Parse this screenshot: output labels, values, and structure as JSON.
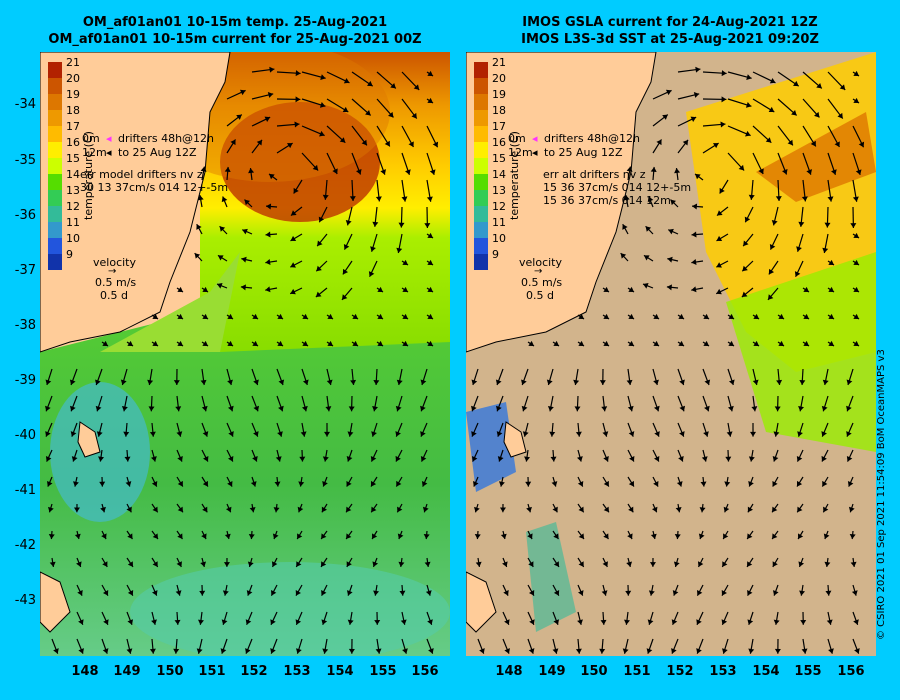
{
  "left_panel": {
    "title_line1": "OM_af01an01 10-15m temp. 25-Aug-2021",
    "title_line2": "OM_af01an01 10-15m current for 25-Aug-2021 00Z",
    "legend": {
      "drifters_line1": "drifters 48h@12h",
      "drifters_line2": "to 25 Aug 12Z",
      "depth_0m": "0m",
      "depth_12m": "12m",
      "err_line1": "err model drifters nv z",
      "err_line2": "30 13 37cm/s 014 12+-5m",
      "velocity_title": "velocity",
      "velocity_speed": "0.5 m/s",
      "velocity_time": "0.5 d"
    }
  },
  "right_panel": {
    "title_line1": "IMOS GSLA current for 24-Aug-2021 12Z",
    "title_line2": "IMOS L3S-3d SST at 25-Aug-2021 09:20Z",
    "legend": {
      "drifters_line1": "drifters 48h@12h",
      "drifters_line2": "to 25 Aug 12Z",
      "depth_0m": "0m",
      "depth_12m": "12m",
      "err_line1": "err alt drifters nv z",
      "err_line2": "15 36 37cm/s 014 12+-5m",
      "err_line3": "15 36 37cm/s 014 12m",
      "velocity_title": "velocity",
      "velocity_speed": "0.5 m/s",
      "velocity_time": "0.5 d"
    }
  },
  "colorbar": {
    "title": "temperature (C)",
    "ticks": [
      "21",
      "20",
      "19",
      "18",
      "17",
      "16",
      "15",
      "14",
      "13",
      "12",
      "11",
      "10",
      "9"
    ],
    "colors": [
      "#b22200",
      "#cc5500",
      "#dd7700",
      "#ee9900",
      "#ffbb00",
      "#ffee00",
      "#ccff00",
      "#55dd00",
      "#33cc55",
      "#33bb99",
      "#3399cc",
      "#2255dd",
      "#1133aa",
      "#000088"
    ]
  },
  "axes": {
    "lat_ticks": [
      "-34",
      "-35",
      "-36",
      "-37",
      "-38",
      "-39",
      "-40",
      "-41",
      "-42",
      "-43"
    ],
    "lon_ticks": [
      "148",
      "149",
      "150",
      "151",
      "152",
      "153",
      "154",
      "155",
      "156"
    ]
  },
  "credit": "© CSIRO 2021  01 Sep 2021 11:54:09 BoM OceanMAPS v3"
}
